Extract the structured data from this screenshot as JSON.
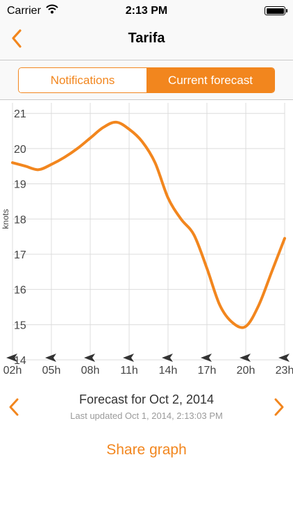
{
  "status_bar": {
    "carrier": "Carrier",
    "time": "2:13 PM"
  },
  "nav": {
    "title": "Tarifa",
    "back_icon": "chevron-left-icon"
  },
  "segments": [
    {
      "label": "Notifications",
      "selected": false
    },
    {
      "label": "Current forecast",
      "selected": true
    }
  ],
  "colors": {
    "accent": "#f2861e",
    "grid": "#dcdcdc",
    "axis_text": "#444444",
    "direction_arrow": "#333333"
  },
  "chart_data": {
    "type": "line",
    "ylabel": "knots",
    "ylim": [
      14,
      21.3
    ],
    "yticks": [
      14,
      15,
      16,
      17,
      18,
      19,
      20,
      21
    ],
    "xlim": [
      2,
      23
    ],
    "xticks": [
      2,
      5,
      8,
      11,
      14,
      17,
      20,
      23
    ],
    "xtick_labels": [
      "02h",
      "05h",
      "08h",
      "11h",
      "14h",
      "17h",
      "20h",
      "23h"
    ],
    "grid": true,
    "series": [
      {
        "x": [
          2,
          3,
          4,
          5,
          6,
          7,
          8,
          9,
          10,
          11,
          12,
          13,
          14,
          15,
          16,
          17,
          18,
          19,
          20,
          21,
          22,
          23
        ],
        "y": [
          19.6,
          19.5,
          19.4,
          19.55,
          19.75,
          20.0,
          20.3,
          20.6,
          20.75,
          20.55,
          20.2,
          19.6,
          18.6,
          18.0,
          17.55,
          16.6,
          15.55,
          15.05,
          14.95,
          15.55,
          16.5,
          17.45
        ]
      }
    ],
    "wind_direction_icons": [
      "wind-direction-arrow-icon",
      "wind-direction-arrow-icon",
      "wind-direction-arrow-icon",
      "wind-direction-arrow-icon",
      "wind-direction-arrow-icon",
      "wind-direction-arrow-icon",
      "wind-direction-arrow-icon",
      "wind-direction-arrow-icon"
    ]
  },
  "forecast": {
    "title": "Forecast for Oct 2, 2014",
    "last_updated": "Last updated Oct 1, 2014, 2:13:03 PM",
    "prev_icon": "chevron-left-icon",
    "next_icon": "chevron-right-icon"
  },
  "share_label": "Share graph"
}
